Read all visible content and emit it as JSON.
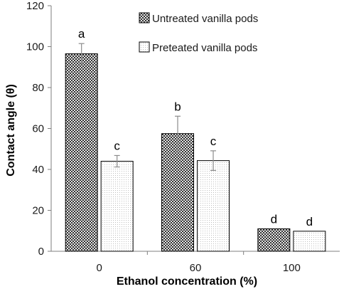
{
  "chart_data": {
    "type": "bar",
    "title": "",
    "xlabel": "Ethanol concentration (%)",
    "ylabel": "Contact angle (θ)",
    "ylim": [
      0,
      120
    ],
    "yticks": [
      0,
      20,
      40,
      60,
      80,
      100,
      120
    ],
    "categories": [
      "0",
      "60",
      "100"
    ],
    "grid": false,
    "legend_position": "top-right",
    "series": [
      {
        "name": "Untreated vanilla pods",
        "values": [
          96.5,
          57.5,
          11
        ],
        "errors": [
          5,
          8.5,
          0
        ],
        "labels": [
          "a",
          "b",
          "d"
        ],
        "pattern": "dark-checker"
      },
      {
        "name": "Preteated vanilla pods",
        "values": [
          44,
          44.3,
          9.8
        ],
        "errors": [
          2.8,
          4.8,
          0
        ],
        "labels": [
          "c",
          "c",
          "d"
        ],
        "pattern": "light-dots"
      }
    ]
  }
}
